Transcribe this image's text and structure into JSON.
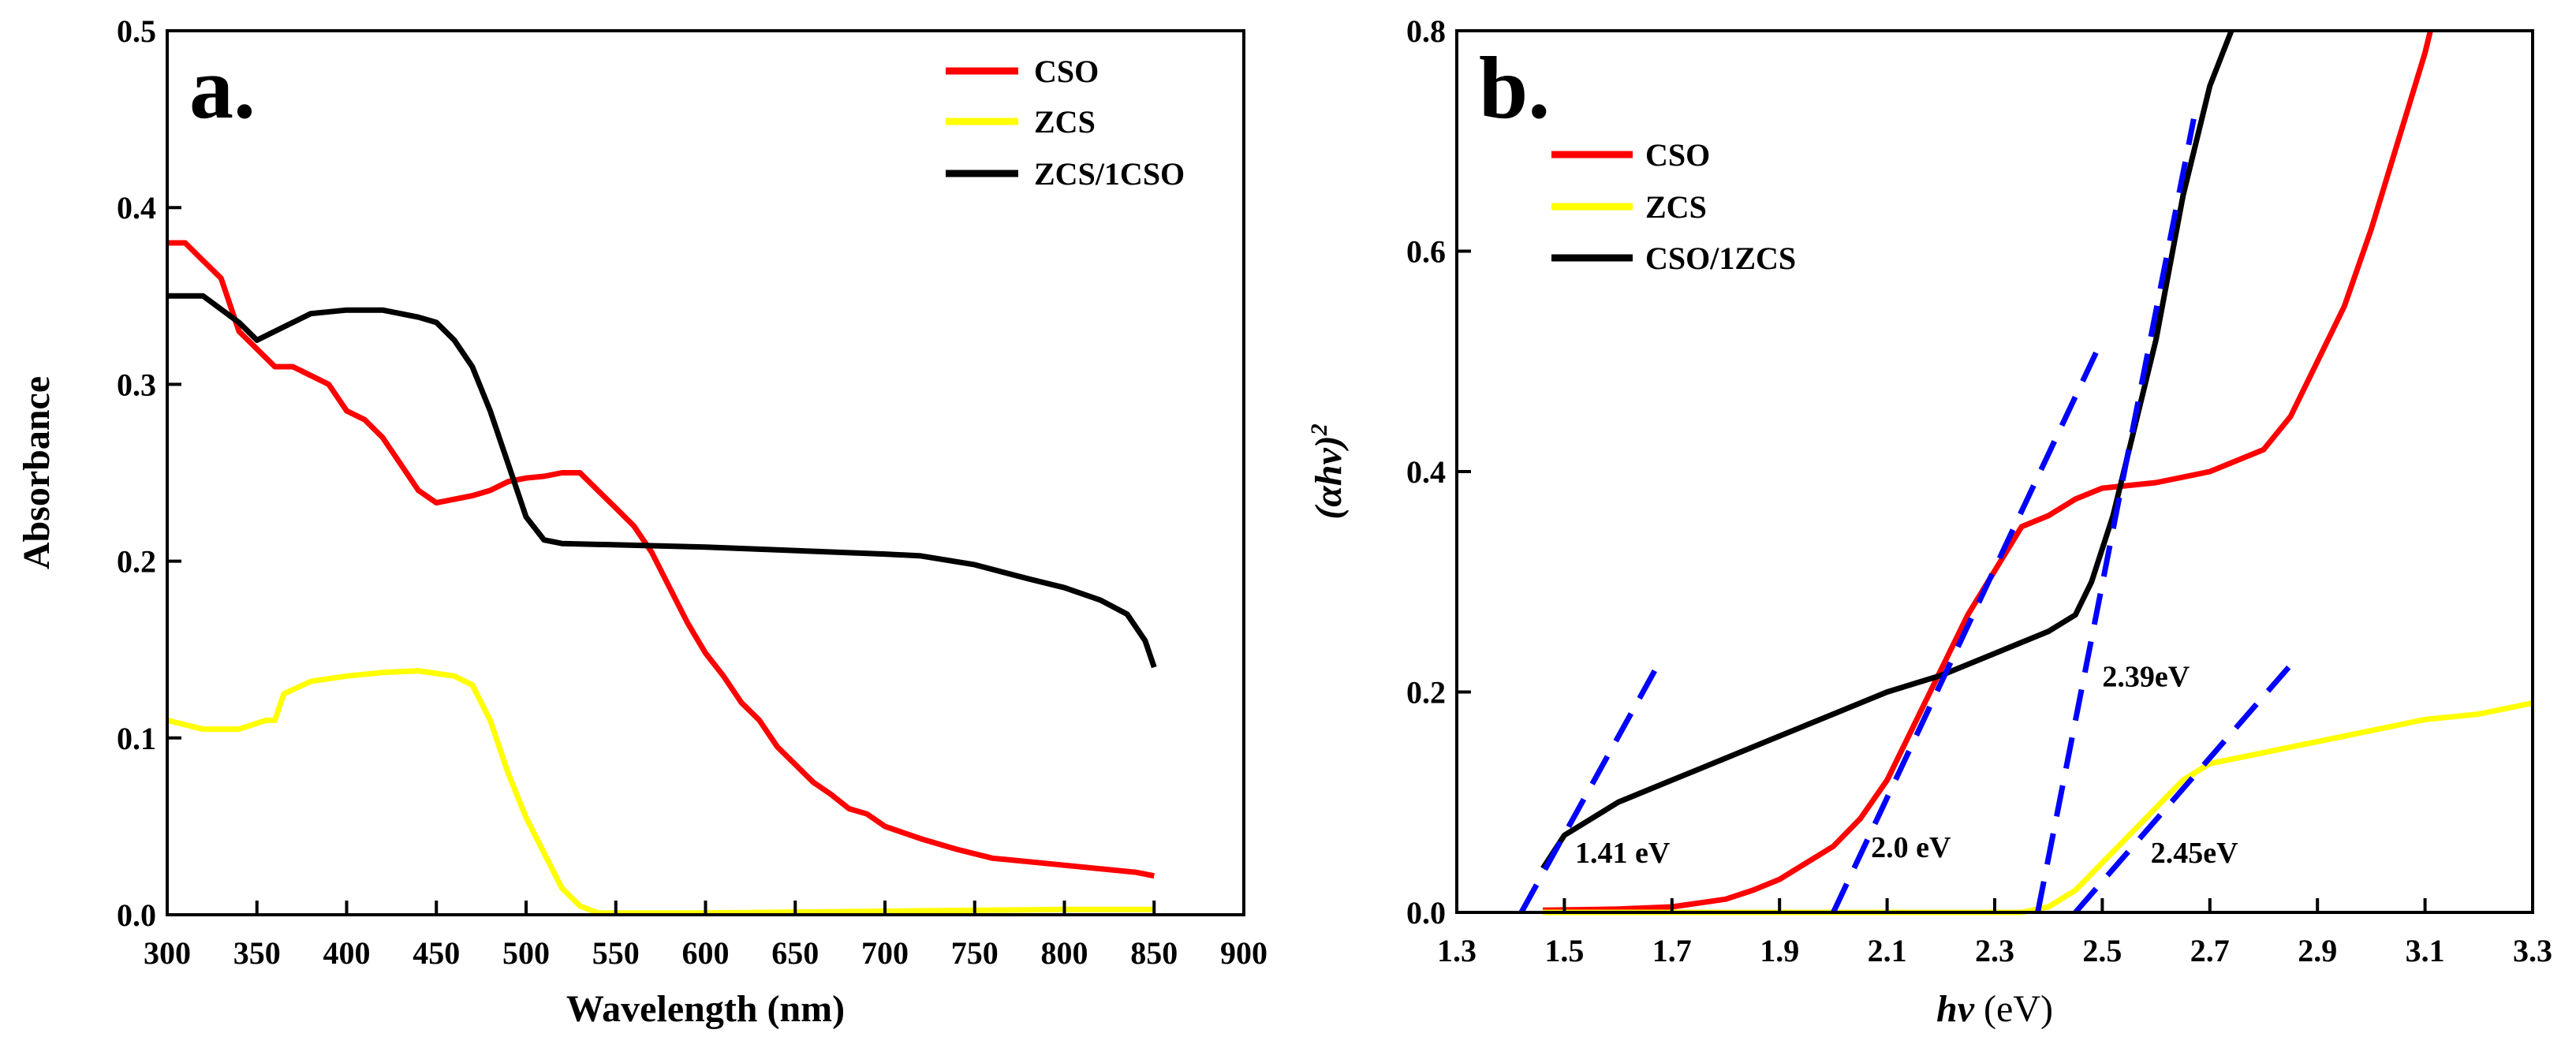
{
  "chart_data": [
    {
      "type": "line",
      "panel_label": "a.",
      "xlabel": "Wavelength (nm)",
      "ylabel": "Absorbance",
      "xlim": [
        300,
        900
      ],
      "ylim": [
        0,
        0.5
      ],
      "xticks": [
        "300",
        "350",
        "400",
        "450",
        "500",
        "550",
        "600",
        "650",
        "700",
        "750",
        "800",
        "850",
        "900"
      ],
      "yticks": [
        "0.0",
        "0.1",
        "0.2",
        "0.3",
        "0.4",
        "0.5"
      ],
      "legend_position": "top-right",
      "series": [
        {
          "name": "CSO",
          "color": "#ff0000",
          "x": [
            300,
            310,
            320,
            330,
            340,
            350,
            360,
            370,
            380,
            390,
            400,
            410,
            420,
            430,
            440,
            450,
            460,
            470,
            480,
            490,
            500,
            510,
            520,
            530,
            540,
            550,
            560,
            570,
            580,
            590,
            600,
            610,
            620,
            630,
            640,
            650,
            660,
            670,
            680,
            690,
            700,
            720,
            740,
            760,
            780,
            800,
            820,
            840,
            850
          ],
          "y": [
            0.38,
            0.38,
            0.37,
            0.36,
            0.33,
            0.32,
            0.31,
            0.31,
            0.305,
            0.3,
            0.285,
            0.28,
            0.27,
            0.255,
            0.24,
            0.233,
            0.235,
            0.237,
            0.24,
            0.245,
            0.247,
            0.248,
            0.25,
            0.25,
            0.24,
            0.23,
            0.22,
            0.205,
            0.185,
            0.165,
            0.148,
            0.135,
            0.12,
            0.11,
            0.095,
            0.085,
            0.075,
            0.068,
            0.06,
            0.057,
            0.05,
            0.043,
            0.037,
            0.032,
            0.03,
            0.028,
            0.026,
            0.024,
            0.022
          ]
        },
        {
          "name": "ZCS",
          "color": "#ffff00",
          "x": [
            300,
            320,
            340,
            355,
            360,
            365,
            380,
            400,
            420,
            440,
            460,
            470,
            480,
            490,
            500,
            510,
            520,
            530,
            540,
            600,
            700,
            800,
            850
          ],
          "y": [
            0.11,
            0.105,
            0.105,
            0.11,
            0.11,
            0.125,
            0.132,
            0.135,
            0.137,
            0.138,
            0.135,
            0.13,
            0.11,
            0.08,
            0.055,
            0.035,
            0.015,
            0.005,
            0.001,
            0.001,
            0.002,
            0.003,
            0.003
          ]
        },
        {
          "name": "ZCS/1CSO",
          "color": "#000000",
          "x": [
            300,
            320,
            340,
            350,
            360,
            370,
            380,
            400,
            420,
            440,
            450,
            460,
            470,
            480,
            490,
            500,
            510,
            520,
            600,
            700,
            720,
            750,
            780,
            800,
            820,
            835,
            845,
            850
          ],
          "y": [
            0.35,
            0.35,
            0.335,
            0.325,
            0.33,
            0.335,
            0.34,
            0.342,
            0.342,
            0.338,
            0.335,
            0.325,
            0.31,
            0.285,
            0.255,
            0.225,
            0.212,
            0.21,
            0.208,
            0.204,
            0.203,
            0.198,
            0.19,
            0.185,
            0.178,
            0.17,
            0.155,
            0.14
          ]
        }
      ]
    },
    {
      "type": "line",
      "panel_label": "b.",
      "xlabel_italic": "hv",
      "xlabel_rest": " (eV)",
      "ylabel": "(αhv)",
      "ylabel_sup": "2",
      "xlim": [
        1.3,
        3.3
      ],
      "ylim": [
        0,
        0.8
      ],
      "xticks": [
        "1.3",
        "1.5",
        "1.7",
        "1.9",
        "2.1",
        "2.3",
        "2.5",
        "2.7",
        "2.9",
        "3.1",
        "3.3"
      ],
      "yticks": [
        "0.0",
        "0.2",
        "0.4",
        "0.6",
        "0.8"
      ],
      "legend_position": "top-left",
      "series": [
        {
          "name": "CSO",
          "color": "#ff0000",
          "x": [
            1.46,
            1.6,
            1.7,
            1.8,
            1.85,
            1.9,
            1.95,
            2.0,
            2.05,
            2.1,
            2.15,
            2.2,
            2.25,
            2.3,
            2.35,
            2.4,
            2.45,
            2.5,
            2.6,
            2.7,
            2.8,
            2.85,
            2.9,
            2.95,
            3.0,
            3.05,
            3.1,
            3.11
          ],
          "y": [
            0.002,
            0.003,
            0.005,
            0.012,
            0.02,
            0.03,
            0.045,
            0.06,
            0.085,
            0.12,
            0.17,
            0.22,
            0.27,
            0.31,
            0.35,
            0.36,
            0.375,
            0.385,
            0.39,
            0.4,
            0.42,
            0.45,
            0.5,
            0.55,
            0.62,
            0.7,
            0.78,
            0.8
          ]
        },
        {
          "name": "ZCS",
          "color": "#ffff00",
          "x": [
            1.46,
            2.35,
            2.4,
            2.45,
            2.5,
            2.55,
            2.6,
            2.65,
            2.7,
            2.8,
            2.9,
            3.0,
            3.1,
            3.2,
            3.3
          ],
          "y": [
            0,
            0,
            0.005,
            0.02,
            0.045,
            0.07,
            0.095,
            0.12,
            0.135,
            0.145,
            0.155,
            0.165,
            0.175,
            0.18,
            0.19
          ]
        },
        {
          "name": "CSO/1ZCS",
          "color": "#000000",
          "x": [
            1.46,
            1.5,
            1.6,
            1.7,
            1.8,
            1.9,
            2.0,
            2.1,
            2.2,
            2.3,
            2.4,
            2.45,
            2.48,
            2.5,
            2.52,
            2.55,
            2.6,
            2.65,
            2.7,
            2.74
          ],
          "y": [
            0.04,
            0.07,
            0.1,
            0.12,
            0.14,
            0.16,
            0.18,
            0.2,
            0.215,
            0.235,
            0.255,
            0.27,
            0.3,
            0.33,
            0.36,
            0.42,
            0.52,
            0.65,
            0.75,
            0.8
          ]
        }
      ],
      "fit_lines": [
        {
          "color": "#0000ff",
          "x": [
            1.42,
            1.68
          ],
          "y": [
            0,
            0.23
          ]
        },
        {
          "color": "#0000ff",
          "x": [
            2.0,
            2.5
          ],
          "y": [
            0,
            0.52
          ]
        },
        {
          "color": "#0000ff",
          "x": [
            2.38,
            2.67
          ],
          "y": [
            0,
            0.72
          ]
        },
        {
          "color": "#0000ff",
          "x": [
            2.45,
            2.86
          ],
          "y": [
            0,
            0.23
          ]
        }
      ],
      "annotations": [
        {
          "text": "1.41 eV",
          "x": 1.52,
          "y": 0.045
        },
        {
          "text": "2.0 eV",
          "x": 2.07,
          "y": 0.05
        },
        {
          "text": "2.39eV",
          "x": 2.5,
          "y": 0.205
        },
        {
          "text": "2.45eV",
          "x": 2.59,
          "y": 0.045
        }
      ]
    }
  ]
}
